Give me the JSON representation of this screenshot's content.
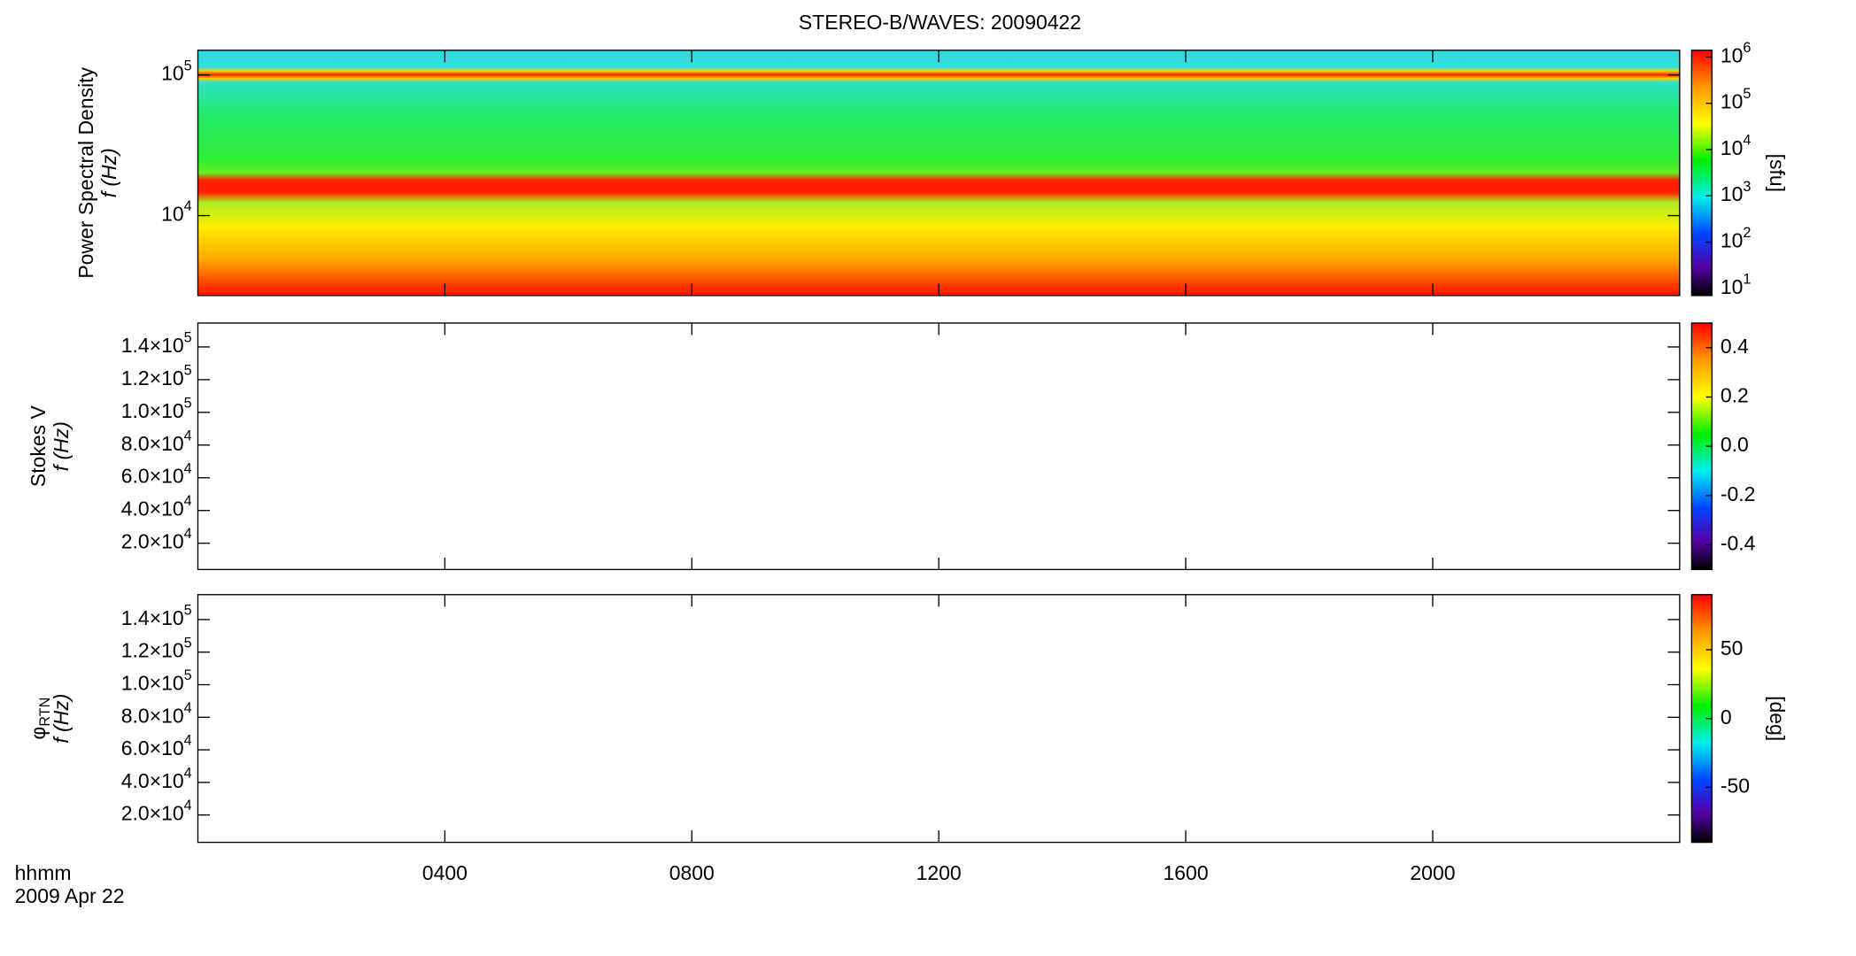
{
  "chart_data": [
    {
      "type": "heatmap",
      "title": "STEREO-B/WAVES: 20090422",
      "ylabel": "Power Spectral Density",
      "ylabel2": "f (Hz)",
      "log_y": true,
      "ylim": [
        2700,
        150000
      ],
      "yticks": [
        {
          "value": 10000,
          "label": "10",
          "exponent": "4"
        },
        {
          "value": 100000,
          "label": "10",
          "exponent": "5"
        }
      ],
      "colorbar": {
        "label": "[sfu]",
        "log": true,
        "lim": [
          7,
          1400000
        ],
        "ticks": [
          {
            "value": 10,
            "label": "10",
            "exponent": "1"
          },
          {
            "value": 100,
            "label": "10",
            "exponent": "2"
          },
          {
            "value": 1000,
            "label": "10",
            "exponent": "3"
          },
          {
            "value": 10000,
            "label": "10",
            "exponent": "4"
          },
          {
            "value": 100000,
            "label": "10",
            "exponent": "5"
          },
          {
            "value": 1000000,
            "label": "10",
            "exponent": "6"
          }
        ]
      },
      "xlim": [
        0,
        24
      ]
    },
    {
      "type": "heatmap",
      "ylabel": "Stokes V",
      "ylabel2": "f (Hz)",
      "log_y": false,
      "ylim": [
        3900,
        154600
      ],
      "yticks": [
        {
          "value": 20000,
          "label": "2.0×10",
          "exponent": "4"
        },
        {
          "value": 40000,
          "label": "4.0×10",
          "exponent": "4"
        },
        {
          "value": 60000,
          "label": "6.0×10",
          "exponent": "4"
        },
        {
          "value": 80000,
          "label": "8.0×10",
          "exponent": "4"
        },
        {
          "value": 100000,
          "label": "1.0×10",
          "exponent": "5"
        },
        {
          "value": 120000,
          "label": "1.2×10",
          "exponent": "5"
        },
        {
          "value": 140000,
          "label": "1.4×10",
          "exponent": "5"
        }
      ],
      "colorbar": {
        "log": false,
        "lim": [
          -0.5,
          0.5
        ],
        "ticks": [
          -0.4,
          -0.2,
          {
            "value": 0,
            "label": "0.0"
          },
          0.2,
          0.4
        ]
      },
      "xlim": [
        0,
        24
      ]
    },
    {
      "type": "heatmap",
      "ylabel": "φ",
      "ylabel_sub": "RTN",
      "ylabel2": "f (Hz)",
      "log_y": false,
      "ylim": [
        3200,
        155300
      ],
      "yticks": [
        {
          "value": 20000,
          "label": "2.0×10",
          "exponent": "4"
        },
        {
          "value": 40000,
          "label": "4.0×10",
          "exponent": "4"
        },
        {
          "value": 60000,
          "label": "6.0×10",
          "exponent": "4"
        },
        {
          "value": 80000,
          "label": "8.0×10",
          "exponent": "4"
        },
        {
          "value": 100000,
          "label": "1.0×10",
          "exponent": "5"
        },
        {
          "value": 120000,
          "label": "1.2×10",
          "exponent": "5"
        },
        {
          "value": 140000,
          "label": "1.4×10",
          "exponent": "5"
        }
      ],
      "colorbar": {
        "label": "[deg]",
        "log": false,
        "lim": [
          -90,
          90
        ],
        "ticks": [
          -50,
          0,
          50
        ]
      },
      "xlim": [
        0,
        24
      ],
      "xticks": [
        {
          "value": 4,
          "label": "0400"
        },
        {
          "value": 8,
          "label": "0800"
        },
        {
          "value": 12,
          "label": "1200"
        },
        {
          "value": 16,
          "label": "1600"
        },
        {
          "value": 20,
          "label": "2000"
        }
      ],
      "xlabel": "hhmm",
      "xlabel2": "2009 Apr 22"
    }
  ]
}
